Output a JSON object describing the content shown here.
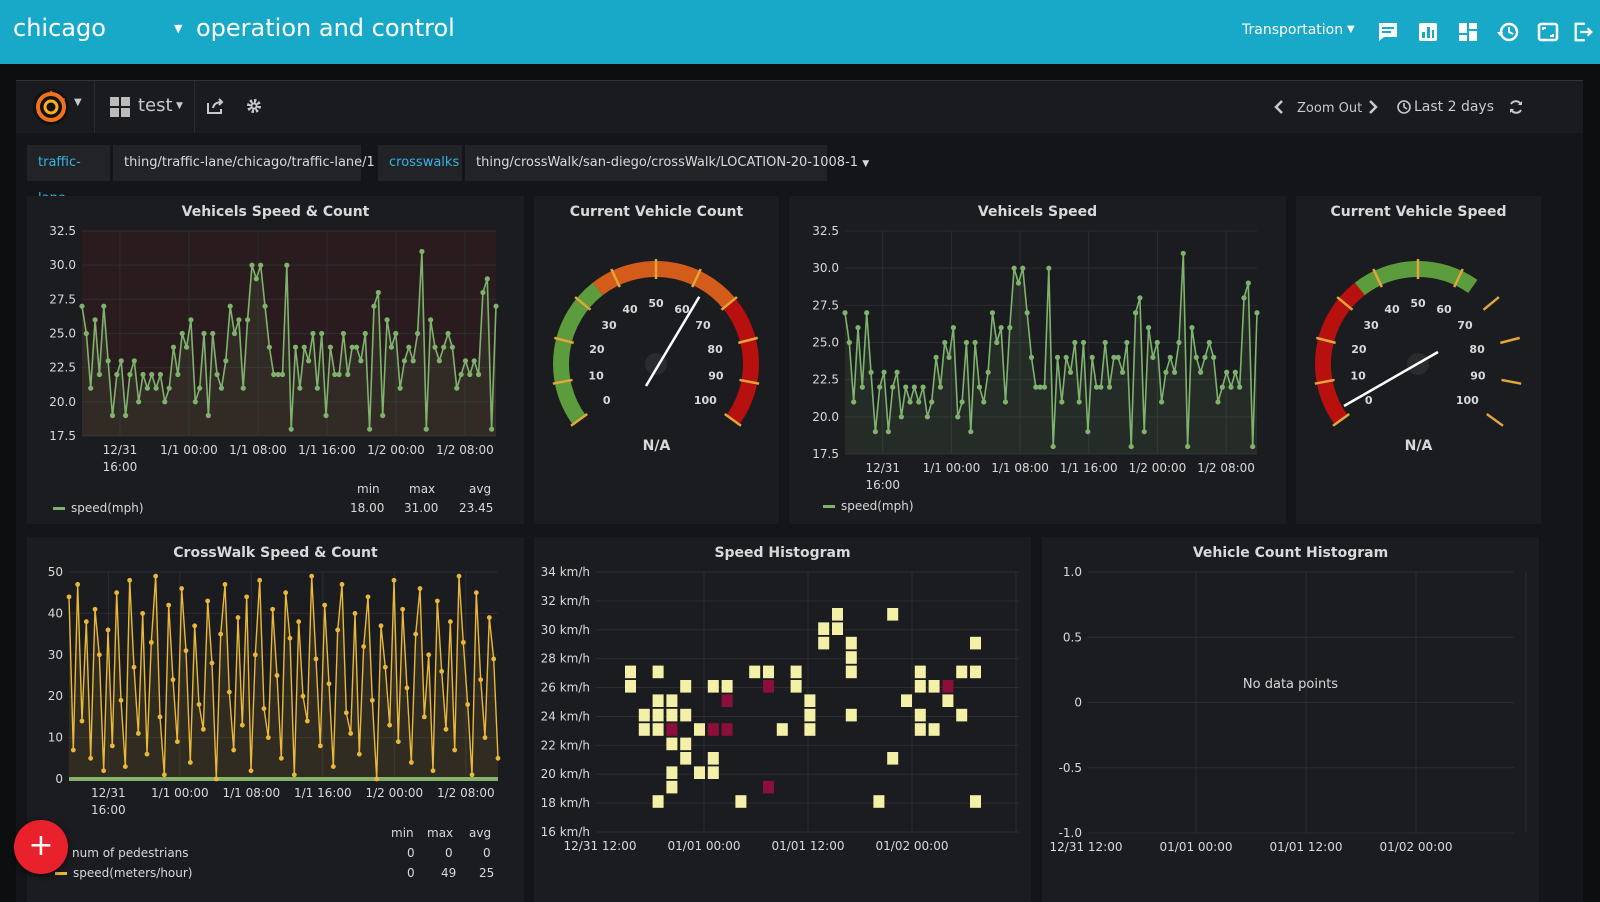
{
  "header": {
    "city": "chicago",
    "title": "operation and control",
    "project": "Transportation"
  },
  "toolbar": {
    "dashboard_name": "test",
    "zoom_out": "Zoom Out",
    "time_range": "Last 2 days"
  },
  "variables": [
    {
      "label": "traffic-lane",
      "value": "thing/traffic-lane/chicago/traffic-lane/1"
    },
    {
      "label": "crosswalks",
      "value": "thing/crossWalk/san-diego/crossWalk/LOCATION-20-1008-1"
    }
  ],
  "panels": {
    "speed_count": {
      "title": "Vehicels Speed & Count",
      "legend": {
        "headers": [
          "min",
          "max",
          "avg"
        ],
        "rows": [
          {
            "name": "speed(mph)",
            "min": "18.00",
            "max": "31.00",
            "avg": "23.45"
          }
        ]
      }
    },
    "current_count": {
      "title": "Current Vehicle Count",
      "value": "N/A"
    },
    "vehicles_speed": {
      "title": "Vehicels Speed",
      "legend": {
        "rows": [
          {
            "name": "speed(mph)"
          }
        ]
      }
    },
    "current_speed": {
      "title": "Current Vehicle Speed",
      "value": "N/A"
    },
    "crosswalk": {
      "title": "CrossWalk Speed & Count",
      "legend": {
        "headers": [
          "min",
          "max",
          "avg"
        ],
        "rows": [
          {
            "name": "num of pedestrians",
            "min": "0",
            "max": "0",
            "avg": "0"
          },
          {
            "name": "speed(meters/hour)",
            "min": "0",
            "max": "49",
            "avg": "25"
          }
        ]
      }
    },
    "speed_histogram": {
      "title": "Speed Histogram"
    },
    "count_histogram": {
      "title": "Vehicle Count Histogram",
      "empty_text": "No data points"
    }
  },
  "colors": {
    "topbar": "#18a9c9",
    "accent": "#33b5e5",
    "series_green": "#7eb26d",
    "series_yellow": "#eab839",
    "heat_light": "#f4f0a8",
    "heat_dark": "#8b0f3a",
    "gauge_green": "#5d9c3c",
    "gauge_orange": "#d35c1a",
    "gauge_red": "#b80f0f",
    "fab": "#e8212d"
  },
  "icons": [
    "comment-icon",
    "chart-icon",
    "dashboard-icon",
    "history-icon",
    "fullscreen-icon",
    "logout-icon",
    "grafana-logo-icon",
    "grid-icon",
    "share-icon",
    "gear-icon",
    "chevron-left-icon",
    "chevron-right-icon",
    "clock-icon",
    "refresh-icon",
    "plus-icon"
  ],
  "chart_data": [
    {
      "type": "line",
      "title": "Vehicels Speed & Count",
      "x_ticks": [
        "12/31\n16:00",
        "1/1 00:00",
        "1/1 08:00",
        "1/1 16:00",
        "1/2 00:00",
        "1/2 08:00"
      ],
      "y_ticks": [
        "17.5",
        "20.0",
        "22.5",
        "25.0",
        "27.5",
        "30.0",
        "32.5"
      ],
      "ylim": [
        17.5,
        32.5
      ],
      "grid": true,
      "series": [
        {
          "name": "speed(mph)",
          "values": [
            27,
            25,
            21,
            26,
            22,
            27,
            23,
            19,
            22,
            23,
            19,
            22,
            23,
            20,
            22,
            21,
            22,
            21,
            22,
            20,
            21,
            24,
            22,
            25,
            24,
            26,
            20,
            21,
            25,
            19,
            25,
            22,
            21,
            23,
            27,
            25,
            26,
            21,
            26,
            30,
            29,
            30,
            27,
            24,
            22,
            22,
            22,
            30,
            18,
            24,
            21,
            24,
            23,
            25,
            21,
            25,
            19,
            24,
            22,
            22,
            25,
            22,
            24,
            24,
            23,
            25,
            18,
            27,
            28,
            19,
            26,
            24,
            25,
            21,
            23,
            24,
            23,
            25,
            31,
            18,
            26,
            24,
            23,
            24,
            25,
            24,
            21,
            22,
            23,
            22,
            23,
            22,
            28,
            29,
            18,
            27
          ]
        }
      ]
    },
    {
      "type": "gauge",
      "title": "Current Vehicle Count",
      "ticks": [
        0,
        10,
        20,
        30,
        40,
        50,
        60,
        70,
        80,
        90,
        100
      ],
      "value": "N/A"
    },
    {
      "type": "line",
      "title": "Vehicels Speed",
      "x_ticks": [
        "12/31\n16:00",
        "1/1 00:00",
        "1/1 08:00",
        "1/1 16:00",
        "1/2 00:00",
        "1/2 08:00"
      ],
      "y_ticks": [
        "17.5",
        "20.0",
        "22.5",
        "25.0",
        "27.5",
        "30.0",
        "32.5"
      ],
      "ylim": [
        17.5,
        32.5
      ],
      "grid": true,
      "series": [
        {
          "name": "speed(mph)",
          "values": [
            27,
            25,
            21,
            26,
            22,
            27,
            23,
            19,
            22,
            23,
            19,
            22,
            23,
            20,
            22,
            21,
            22,
            21,
            22,
            20,
            21,
            24,
            22,
            25,
            24,
            26,
            20,
            21,
            25,
            19,
            25,
            22,
            21,
            23,
            27,
            25,
            26,
            21,
            26,
            30,
            29,
            30,
            27,
            24,
            22,
            22,
            22,
            30,
            18,
            24,
            21,
            24,
            23,
            25,
            21,
            25,
            19,
            24,
            22,
            22,
            25,
            22,
            24,
            24,
            23,
            25,
            18,
            27,
            28,
            19,
            26,
            24,
            25,
            21,
            23,
            24,
            23,
            25,
            31,
            18,
            26,
            24,
            23,
            24,
            25,
            24,
            21,
            22,
            23,
            22,
            23,
            22,
            28,
            29,
            18,
            27
          ]
        }
      ]
    },
    {
      "type": "gauge",
      "title": "Current Vehicle Speed",
      "ticks": [
        0,
        10,
        20,
        30,
        40,
        50,
        60,
        70,
        80,
        90,
        100
      ],
      "value": "N/A"
    },
    {
      "type": "line",
      "title": "CrossWalk Speed & Count",
      "x_ticks": [
        "12/31\n16:00",
        "1/1 00:00",
        "1/1 08:00",
        "1/1 16:00",
        "1/2 00:00",
        "1/2 08:00"
      ],
      "y_ticks": [
        "0",
        "10",
        "20",
        "30",
        "40",
        "50"
      ],
      "ylim": [
        0,
        50
      ],
      "grid": true,
      "series": [
        {
          "name": "num of pedestrians",
          "values": [
            0
          ]
        },
        {
          "name": "speed(meters/hour)",
          "values": [
            44,
            7,
            47,
            14,
            38,
            5,
            41,
            30,
            2,
            36,
            8,
            45,
            19,
            3,
            48,
            27,
            11,
            40,
            6,
            33,
            49,
            15,
            1,
            42,
            24,
            9,
            46,
            31,
            4,
            37,
            18,
            12,
            43,
            28,
            0,
            35,
            47,
            21,
            7,
            39,
            13,
            44,
            2,
            30,
            48,
            17,
            10,
            41,
            25,
            5,
            45,
            34,
            1,
            38,
            20,
            14,
            49,
            29,
            8,
            42,
            23,
            3,
            36,
            47,
            16,
            11,
            40,
            6,
            32,
            44,
            19,
            0,
            37,
            27,
            13,
            48,
            9,
            41,
            22,
            4,
            35,
            46,
            15,
            30,
            2,
            43,
            26,
            12,
            38,
            7,
            49,
            33,
            18,
            1,
            45,
            24,
            10,
            39,
            29,
            5
          ]
        }
      ]
    },
    {
      "type": "heatmap",
      "title": "Speed Histogram",
      "x_ticks": [
        "12/31 12:00",
        "01/01 00:00",
        "01/01 12:00",
        "01/02 00:00"
      ],
      "y_ticks": [
        "16 km/h",
        "18 km/h",
        "20 km/h",
        "22 km/h",
        "24 km/h",
        "26 km/h",
        "28 km/h",
        "30 km/h",
        "32 km/h",
        "34 km/h"
      ],
      "cells": [
        {
          "col": 0,
          "row": 10,
          "level": "low"
        },
        {
          "col": 0,
          "row": 9,
          "level": "low"
        },
        {
          "col": 2,
          "row": 10,
          "level": "low"
        },
        {
          "col": 1,
          "row": 7,
          "level": "low"
        },
        {
          "col": 1,
          "row": 6,
          "level": "low"
        },
        {
          "col": 2,
          "row": 8,
          "level": "low"
        },
        {
          "col": 2,
          "row": 7,
          "level": "low"
        },
        {
          "col": 2,
          "row": 6,
          "level": "low"
        },
        {
          "col": 2,
          "row": 1,
          "level": "low"
        },
        {
          "col": 3,
          "row": 8,
          "level": "low"
        },
        {
          "col": 3,
          "row": 7,
          "level": "low"
        },
        {
          "col": 3,
          "row": 6,
          "level": "high"
        },
        {
          "col": 3,
          "row": 5,
          "level": "low"
        },
        {
          "col": 3,
          "row": 3,
          "level": "low"
        },
        {
          "col": 3,
          "row": 2,
          "level": "low"
        },
        {
          "col": 4,
          "row": 7,
          "level": "low"
        },
        {
          "col": 4,
          "row": 5,
          "level": "low"
        },
        {
          "col": 4,
          "row": 4,
          "level": "low"
        },
        {
          "col": 4,
          "row": 9,
          "level": "low"
        },
        {
          "col": 5,
          "row": 6,
          "level": "low"
        },
        {
          "col": 5,
          "row": 3,
          "level": "low"
        },
        {
          "col": 6,
          "row": 9,
          "level": "low"
        },
        {
          "col": 6,
          "row": 6,
          "level": "high"
        },
        {
          "col": 6,
          "row": 4,
          "level": "low"
        },
        {
          "col": 6,
          "row": 3,
          "level": "low"
        },
        {
          "col": 7,
          "row": 9,
          "level": "low"
        },
        {
          "col": 7,
          "row": 8,
          "level": "high"
        },
        {
          "col": 7,
          "row": 6,
          "level": "high"
        },
        {
          "col": 8,
          "row": 1,
          "level": "low"
        },
        {
          "col": 9,
          "row": 10,
          "level": "low"
        },
        {
          "col": 10,
          "row": 10,
          "level": "low"
        },
        {
          "col": 10,
          "row": 9,
          "level": "high"
        },
        {
          "col": 10,
          "row": 2,
          "level": "high"
        },
        {
          "col": 11,
          "row": 6,
          "level": "low"
        },
        {
          "col": 12,
          "row": 10,
          "level": "low"
        },
        {
          "col": 12,
          "row": 9,
          "level": "low"
        },
        {
          "col": 13,
          "row": 8,
          "level": "low"
        },
        {
          "col": 13,
          "row": 7,
          "level": "low"
        },
        {
          "col": 13,
          "row": 6,
          "level": "low"
        },
        {
          "col": 14,
          "row": 13,
          "level": "low"
        },
        {
          "col": 14,
          "row": 12,
          "level": "low"
        },
        {
          "col": 15,
          "row": 14,
          "level": "low"
        },
        {
          "col": 15,
          "row": 13,
          "level": "low"
        },
        {
          "col": 16,
          "row": 12,
          "level": "low"
        },
        {
          "col": 16,
          "row": 11,
          "level": "low"
        },
        {
          "col": 16,
          "row": 10,
          "level": "low"
        },
        {
          "col": 16,
          "row": 7,
          "level": "low"
        },
        {
          "col": 18,
          "row": 1,
          "level": "low"
        },
        {
          "col": 19,
          "row": 14,
          "level": "low"
        },
        {
          "col": 19,
          "row": 4,
          "level": "low"
        },
        {
          "col": 20,
          "row": 8,
          "level": "low"
        },
        {
          "col": 21,
          "row": 10,
          "level": "low"
        },
        {
          "col": 21,
          "row": 9,
          "level": "low"
        },
        {
          "col": 21,
          "row": 7,
          "level": "low"
        },
        {
          "col": 21,
          "row": 6,
          "level": "low"
        },
        {
          "col": 22,
          "row": 9,
          "level": "low"
        },
        {
          "col": 22,
          "row": 6,
          "level": "low"
        },
        {
          "col": 23,
          "row": 9,
          "level": "high"
        },
        {
          "col": 23,
          "row": 8,
          "level": "low"
        },
        {
          "col": 24,
          "row": 10,
          "level": "low"
        },
        {
          "col": 24,
          "row": 7,
          "level": "low"
        },
        {
          "col": 25,
          "row": 10,
          "level": "low"
        },
        {
          "col": 25,
          "row": 12,
          "level": "low"
        },
        {
          "col": 25,
          "row": 1,
          "level": "low"
        }
      ]
    },
    {
      "type": "line",
      "title": "Vehicle Count Histogram",
      "x_ticks": [
        "12/31 12:00",
        "01/01 00:00",
        "01/01 12:00",
        "01/02 00:00"
      ],
      "y_ticks": [
        "-1.0",
        "-0.5",
        "0",
        "0.5",
        "1.0"
      ],
      "ylim": [
        -1.0,
        1.0
      ],
      "series": []
    }
  ]
}
